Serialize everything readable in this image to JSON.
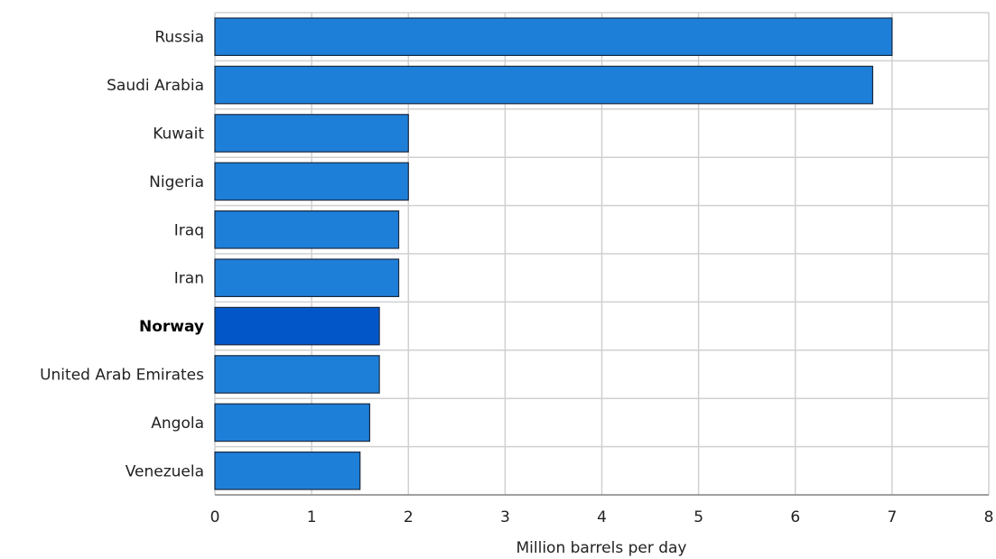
{
  "chart_data": {
    "type": "bar",
    "orientation": "horizontal",
    "categories": [
      "Russia",
      "Saudi Arabia",
      "Kuwait",
      "Nigeria",
      "Iraq",
      "Iran",
      "Norway",
      "United Arab Emirates",
      "Angola",
      "Venezuela"
    ],
    "values": [
      7.0,
      6.8,
      2.0,
      2.0,
      1.9,
      1.9,
      1.7,
      1.7,
      1.6,
      1.5
    ],
    "highlight": "Norway",
    "title": "",
    "xlabel": "Million barrels per day",
    "ylabel": "",
    "xlim": [
      0,
      8
    ],
    "xticks": [
      "0",
      "1",
      "2",
      "3",
      "4",
      "5",
      "6",
      "7",
      "8"
    ],
    "grid": true,
    "colors": {
      "bar": "#1e7fd9",
      "highlight": "#0356c8",
      "bar_stroke": "#1a2a40",
      "grid": "#d0d0d0"
    }
  }
}
